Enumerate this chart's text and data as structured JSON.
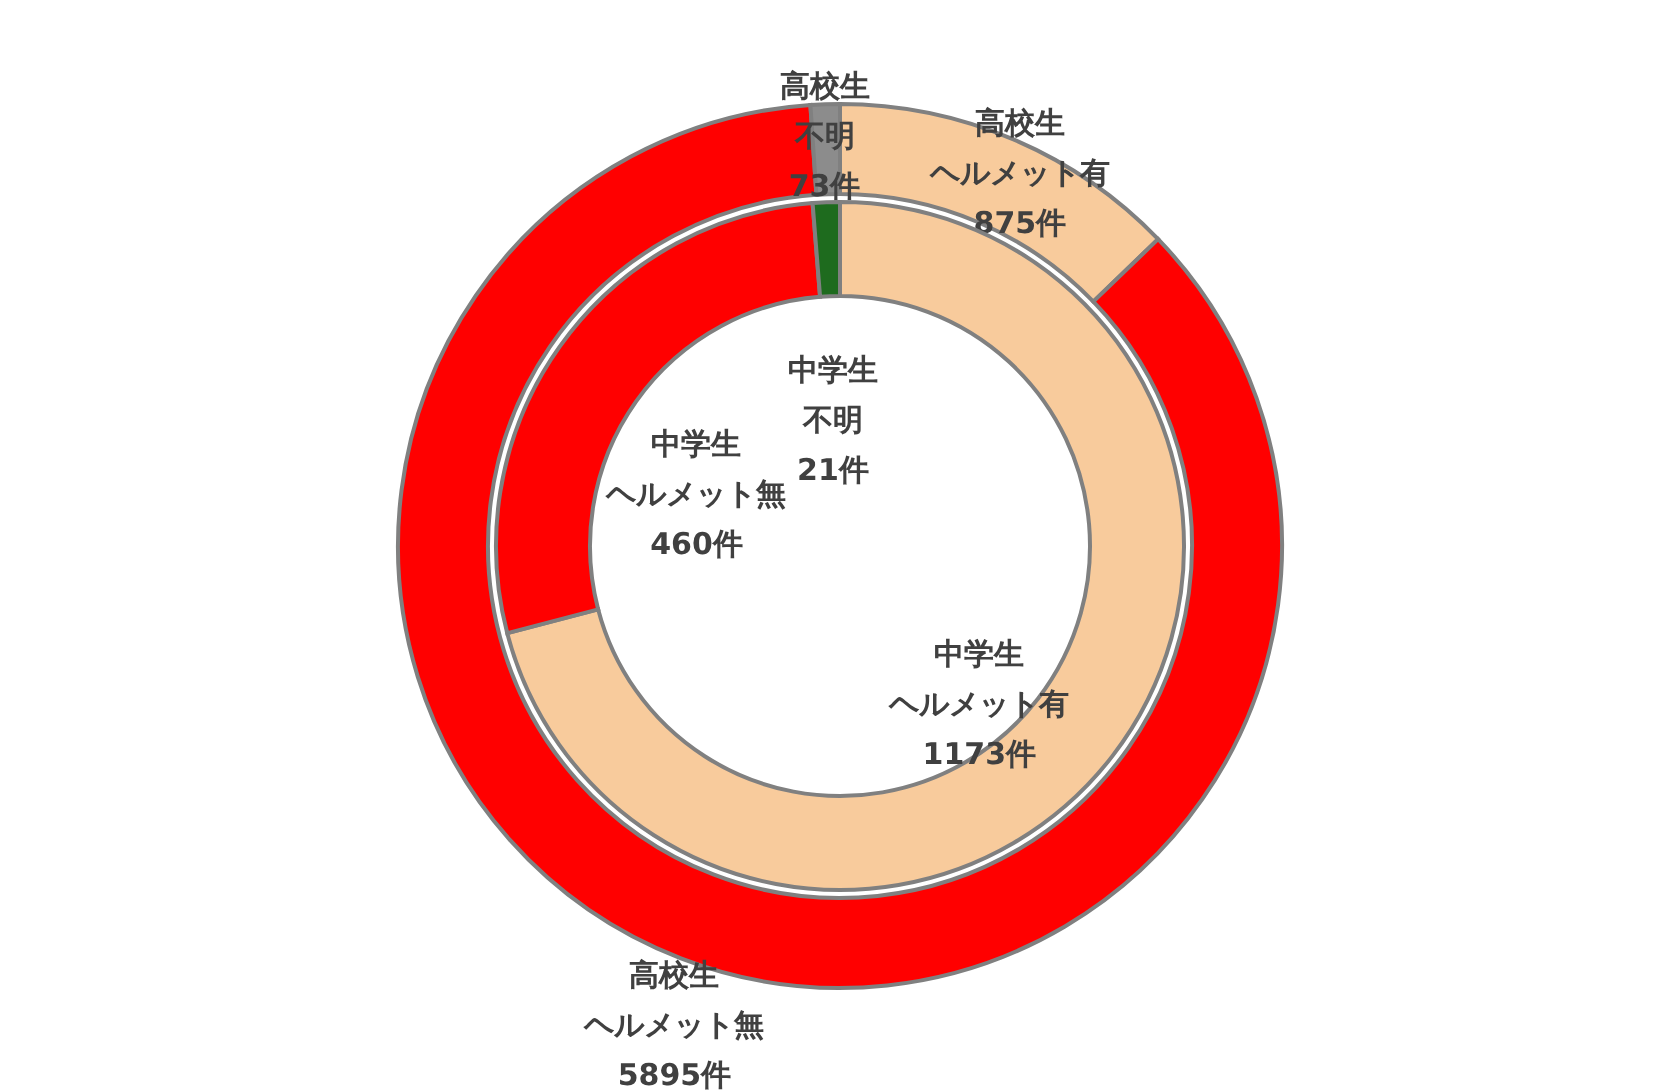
{
  "chart_data": {
    "type": "donut",
    "categories": [
      "ヘルメット有",
      "ヘルメット無",
      "不明"
    ],
    "series": [
      {
        "name": "高校生",
        "values": [
          875,
          5895,
          73
        ],
        "colors": [
          "#f8cb9c",
          "#ff0000",
          "#8c8c8c"
        ],
        "value_labels": [
          "875件",
          "5895件",
          "73件"
        ]
      },
      {
        "name": "中学生",
        "values": [
          1173,
          460,
          21
        ],
        "colors": [
          "#f8cb9c",
          "#ff0000",
          "#1e6b1e"
        ],
        "value_labels": [
          "1173件",
          "460件",
          "21件"
        ]
      }
    ]
  }
}
